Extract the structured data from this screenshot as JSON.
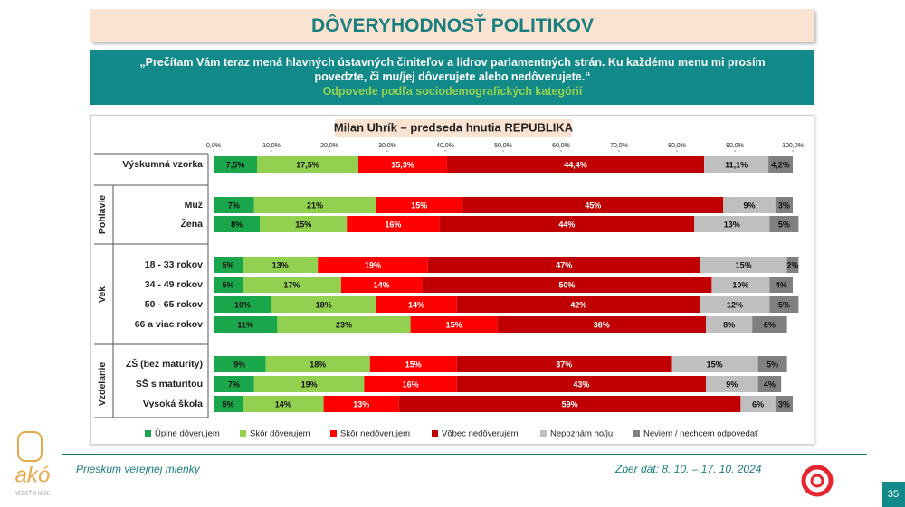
{
  "header": {
    "title": "DÔVERYHODNOSŤ POLITIKOV",
    "question": "„Prečítam Vám teraz mená hlavných ústavných činiteľov a lídrov parlamentných strán. Ku každému menu mi prosím povedzte, či mu/jej dôverujete alebo nedôverujete.“",
    "subtitle": "Odpovede podľa sociodemografických kategórií"
  },
  "chart_data": {
    "type": "stacked-bar-horizontal",
    "title": "Milan Uhrík – predseda hnutia REPUBLIKA",
    "categories": [
      "Výskumná vzorka",
      "Muž",
      "Žena",
      "18 - 33 rokov",
      "34 - 49 rokov",
      "50 - 65 rokov",
      "66 a viac rokov",
      "ZŠ (bez maturity)",
      "SŠ s maturitou",
      "Vysoká škola"
    ],
    "groups": [
      "Pohlavie",
      "Vek",
      "Vzdelanie"
    ],
    "xlim": [
      0,
      100
    ],
    "xticks": [
      {
        "value": 0,
        "label": "0,0%"
      },
      {
        "value": 10,
        "label": "10,0%"
      },
      {
        "value": 20,
        "label": "20,0%"
      },
      {
        "value": 30,
        "label": "30,0%"
      },
      {
        "value": 40,
        "label": "40,0%"
      },
      {
        "value": 50,
        "label": "50,0%"
      },
      {
        "value": 60,
        "label": "60,0%"
      },
      {
        "value": 70,
        "label": "70,0%"
      },
      {
        "value": 80,
        "label": "80,0%"
      },
      {
        "value": 90,
        "label": "90,0%"
      },
      {
        "value": 100,
        "label": "100,0%"
      }
    ],
    "series": [
      {
        "name": "Úplne dôverujem",
        "color": "#1aa64a",
        "values": [
          7.5,
          7,
          8,
          5,
          5,
          10,
          11,
          9,
          7,
          5
        ],
        "value_labels": [
          "7,5%",
          "7%",
          "8%",
          "5%",
          "5%",
          "10%",
          "11%",
          "9%",
          "7%",
          "5%"
        ]
      },
      {
        "name": "Skôr dôverujem",
        "color": "#92d050",
        "values": [
          17.5,
          21,
          15,
          13,
          17,
          18,
          23,
          18,
          19,
          14
        ],
        "value_labels": [
          "17,5%",
          "21%",
          "15%",
          "13%",
          "17%",
          "18%",
          "23%",
          "18%",
          "19%",
          "14%"
        ]
      },
      {
        "name": "Skôr nedôverujem",
        "color": "#ff0000",
        "values": [
          15.3,
          15,
          16,
          19,
          14,
          14,
          15,
          15,
          16,
          13
        ],
        "value_labels": [
          "15,3%",
          "15%",
          "16%",
          "19%",
          "14%",
          "14%",
          "15%",
          "15%",
          "16%",
          "13%"
        ]
      },
      {
        "name": "Vôbec nedôverujem",
        "color": "#c00000",
        "values": [
          44.4,
          45,
          44,
          47,
          50,
          42,
          36,
          37,
          43,
          59
        ],
        "value_labels": [
          "44,4%",
          "45%",
          "44%",
          "47%",
          "50%",
          "42%",
          "36%",
          "37%",
          "43%",
          "59%"
        ]
      },
      {
        "name": "Nepoznám ho/ju",
        "color": "#bfbfbf",
        "values": [
          11.1,
          9,
          13,
          15,
          10,
          12,
          8,
          15,
          9,
          6
        ],
        "value_labels": [
          "11,1%",
          "9%",
          "13%",
          "15%",
          "10%",
          "12%",
          "8%",
          "15%",
          "9%",
          "6%"
        ]
      },
      {
        "name": "Neviem / nechcem odpovedať",
        "color": "#808080",
        "values": [
          4.2,
          3,
          5,
          2,
          4,
          5,
          6,
          5,
          4,
          3
        ],
        "value_labels": [
          "4,2%",
          "3%",
          "5%",
          "2%",
          "4%",
          "5%",
          "6%",
          "5%",
          "4%",
          "3%"
        ]
      }
    ]
  },
  "footer": {
    "survey": "Prieskum verejnej mienky",
    "dates": "Zber dát: 8. 10. – 17. 10. 2024",
    "page": "35",
    "logo": "akó",
    "logo_tagline": "VEDIEŤ O SEBE"
  }
}
